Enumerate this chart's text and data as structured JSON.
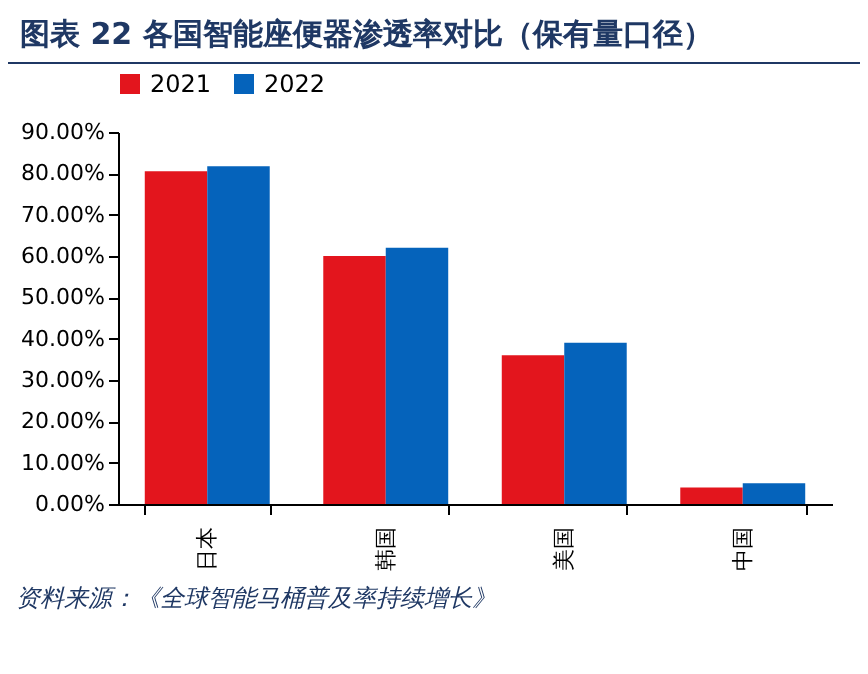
{
  "chart_data": {
    "type": "bar",
    "title": "图表 22   各国智能座便器渗透率对比（保有量口径）",
    "categories": [
      "日本",
      "韩国",
      "美国",
      "中国"
    ],
    "series": [
      {
        "name": "2021",
        "color": "#e3151d",
        "values": [
          80.5,
          60,
          36,
          4
        ]
      },
      {
        "name": "2022",
        "color": "#0563bb",
        "values": [
          81.7,
          62,
          39,
          5
        ]
      }
    ],
    "ylim": [
      0,
      90
    ],
    "yticks": [
      {
        "value": 0,
        "label": "0.00%"
      },
      {
        "value": 10,
        "label": "10.00%"
      },
      {
        "value": 20,
        "label": "20.00%"
      },
      {
        "value": 30,
        "label": "30.00%"
      },
      {
        "value": 40,
        "label": "40.00%"
      },
      {
        "value": 50,
        "label": "50.00%"
      },
      {
        "value": 60,
        "label": "60.00%"
      },
      {
        "value": 70,
        "label": "70.00%"
      },
      {
        "value": 80,
        "label": "80.00%"
      },
      {
        "value": 90,
        "label": "90.00%"
      }
    ],
    "grid": false,
    "legend": "top",
    "annotations": [
      "资料来源：《全球智能马桶普及率持续增长》"
    ]
  }
}
